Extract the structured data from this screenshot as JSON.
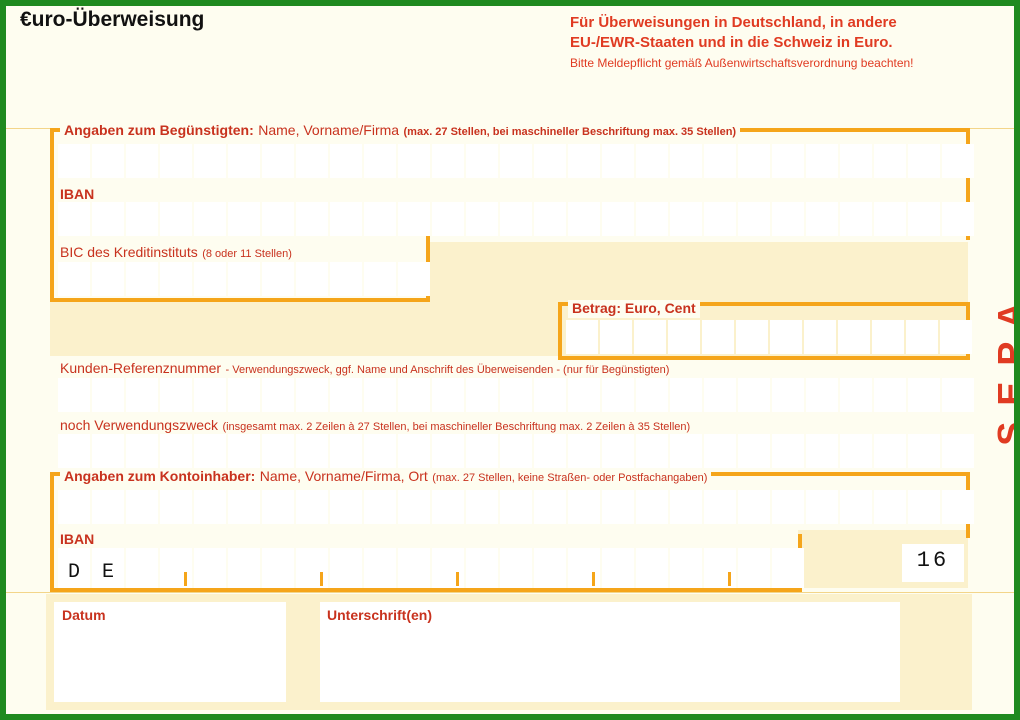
{
  "title": "€uro-Überweisung",
  "header_lines": [
    "Für Überweisungen in Deutschland, in andere",
    "EU-/EWR-Staaten und in die Schweiz in Euro."
  ],
  "header_note": "Bitte Meldepflicht gemäß Außenwirtschaftsverordnung beachten!",
  "beneficiary": {
    "label": "Angaben zum Begünstigten:",
    "label_rest": "Name, Vorname/Firma",
    "hint": "(max. 27 Stellen, bei maschineller Beschriftung max. 35 Stellen)"
  },
  "beneficiary_iban": {
    "label": "IBAN"
  },
  "bic": {
    "label": "BIC des Kreditinstituts",
    "hint": "(8 oder 11 Stellen)"
  },
  "amount": {
    "label": "Betrag: Euro, Cent"
  },
  "reference": {
    "label": "Kunden-Referenznummer",
    "hint": "- Verwendungszweck, ggf. Name und Anschrift des Überweisenden - (nur für Begünstigten)"
  },
  "purpose2": {
    "label": "noch Verwendungszweck",
    "hint": "(insgesamt max. 2 Zeilen à 27 Stellen, bei maschineller Beschriftung max. 2 Zeilen à 35 Stellen)"
  },
  "account_holder": {
    "label": "Angaben zum Kontoinhaber:",
    "label_rest": "Name, Vorname/Firma, Ort",
    "hint": "(max. 27 Stellen, keine Straßen- oder Postfachangaben)"
  },
  "holder_iban": {
    "label": "IBAN",
    "country": [
      "D",
      "E"
    ]
  },
  "form_code": "16",
  "side_label": "SEPA",
  "date": {
    "label": "Datum"
  },
  "signature": {
    "label": "Unterschrift(en)"
  },
  "colors": {
    "accent": "#f5a51a",
    "label": "#c8321e",
    "frame": "#1f8a1f"
  }
}
